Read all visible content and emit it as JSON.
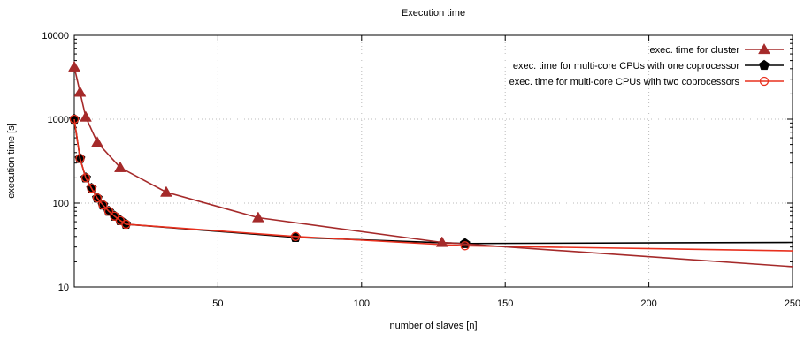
{
  "chart_data": {
    "type": "line",
    "title": "Execution time",
    "xlabel": "number of slaves [n]",
    "ylabel": "execution time [s]",
    "x_scale": "linear",
    "y_scale": "log",
    "xlim": [
      0,
      250
    ],
    "ylim": [
      10,
      10000
    ],
    "x_ticks": [
      50,
      100,
      150,
      200,
      250
    ],
    "x_tick_labels": [
      "50",
      "100",
      "150",
      "200",
      "250"
    ],
    "y_ticks": [
      10,
      100,
      1000,
      10000
    ],
    "y_tick_labels": [
      "10",
      "100",
      "1000",
      "10000"
    ],
    "grid": true,
    "legend_position": "top-right",
    "series": [
      {
        "name": "exec. time for cluster",
        "color": "#a52a2a",
        "marker": "triangle",
        "x": [
          0,
          2,
          4,
          8,
          16,
          32,
          64,
          128
        ],
        "y": [
          4200,
          2100,
          1060,
          530,
          265,
          135,
          67,
          34
        ],
        "trend_end": [
          250,
          17.5
        ]
      },
      {
        "name": "exec. time for multi-core CPUs with one coprocessor",
        "color": "#000000",
        "marker": "pentagon",
        "x": [
          0,
          2,
          4,
          6,
          8,
          10,
          12,
          14,
          16,
          18,
          77,
          136
        ],
        "y": [
          1000,
          340,
          200,
          150,
          115,
          95,
          80,
          70,
          62,
          56,
          39,
          33
        ],
        "trend_end": [
          250,
          34
        ]
      },
      {
        "name": "exec. time for multi-core CPUs with two coprocessors",
        "color": "#e8301e",
        "marker": "circle-open",
        "x": [
          0,
          2,
          4,
          6,
          8,
          10,
          12,
          14,
          16,
          18,
          77,
          136
        ],
        "y": [
          1000,
          340,
          200,
          150,
          115,
          95,
          80,
          70,
          62,
          56,
          40,
          31
        ],
        "trend_end": [
          250,
          27
        ]
      }
    ]
  }
}
